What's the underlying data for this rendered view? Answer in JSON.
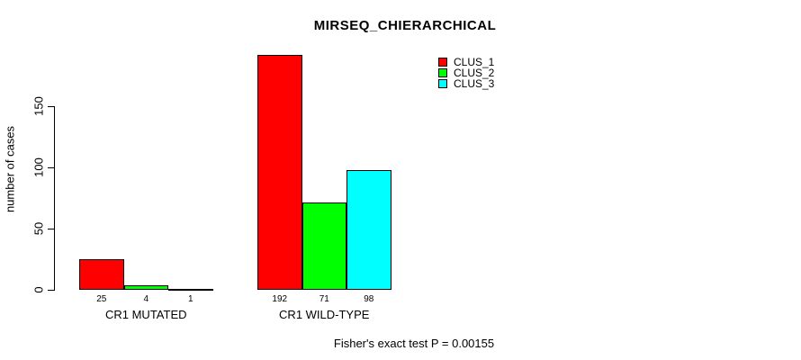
{
  "chart_data": {
    "type": "bar",
    "title": "MIRSEQ_CHIERARCHICAL",
    "xlabel": "",
    "ylabel": "number of cases",
    "ylim": [
      0,
      150
    ],
    "yticks": [
      0,
      50,
      100,
      150
    ],
    "grid": false,
    "legend_position": "top-right",
    "bar_value_labels": true,
    "categories": [
      "CR1 MUTATED",
      "CR1 WILD-TYPE"
    ],
    "series": [
      {
        "name": "CLUS_1",
        "color": "#FF0000",
        "values": [
          25,
          192
        ]
      },
      {
        "name": "CLUS_2",
        "color": "#00FF00",
        "values": [
          4,
          71
        ]
      },
      {
        "name": "CLUS_3",
        "color": "#00FFFF",
        "values": [
          1,
          98
        ]
      }
    ],
    "annotation": "Fisher's exact test P = 0.00155"
  },
  "colors": {
    "background": "#FFFFFF",
    "axis": "#000000",
    "bar_border": "#000000"
  }
}
